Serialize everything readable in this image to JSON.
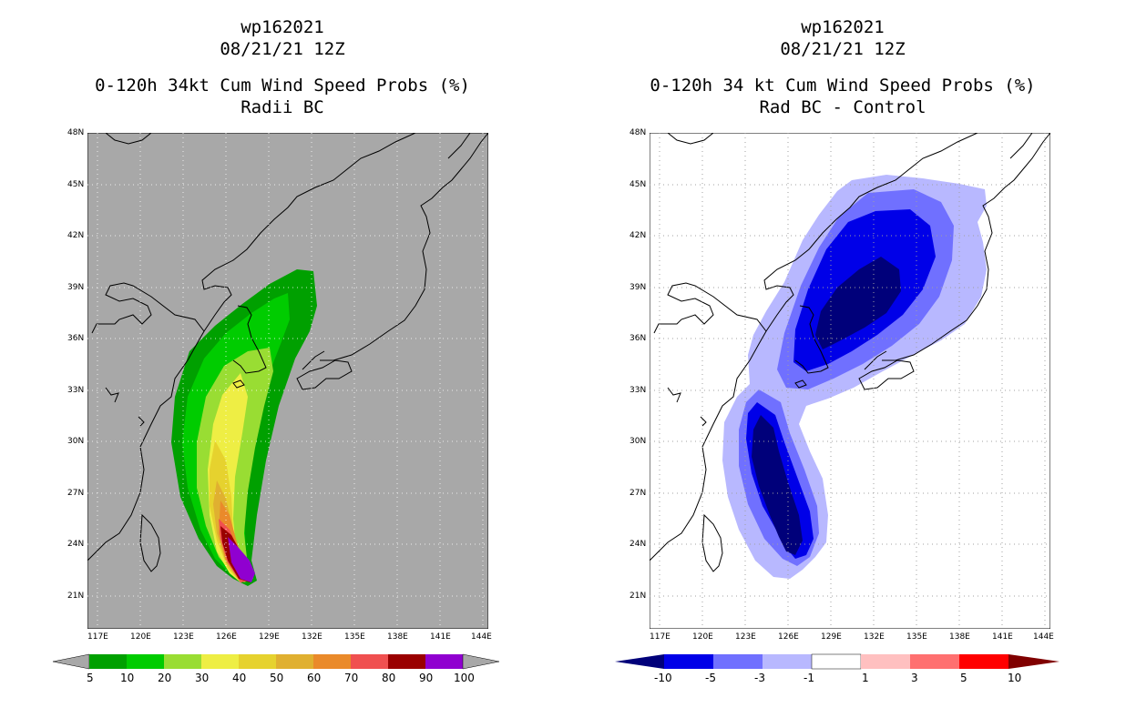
{
  "left": {
    "title_line1": "wp162021",
    "title_line2": "08/21/21 12Z",
    "title_line3": "0-120h 34kt Cum Wind Speed Probs (%)",
    "title_line4": "Radii BC",
    "colorbar": {
      "labels": [
        "5",
        "10",
        "20",
        "30",
        "40",
        "50",
        "60",
        "70",
        "80",
        "90",
        "100"
      ],
      "colors": [
        "#00a000",
        "#00cc00",
        "#99dd33",
        "#eeee44",
        "#e6d22e",
        "#e0b030",
        "#ea8a2a",
        "#f05050",
        "#9a0000",
        "#9000d0"
      ],
      "end_color": "#a8a8a8"
    },
    "background_color": "#a8a8a8"
  },
  "right": {
    "title_line1": "wp162021",
    "title_line2": "08/21/21 12Z",
    "title_line3": "0-120h 34 kt Cum Wind Speed Probs (%)",
    "title_line4": "Rad BC - Control",
    "colorbar": {
      "labels": [
        "-10",
        "-5",
        "-3",
        "-1",
        "1",
        "3",
        "5",
        "10"
      ],
      "colors": [
        "#0000e8",
        "#7070ff",
        "#b8b8ff",
        "#ffffff",
        "#ffc0c0",
        "#ff7070",
        "#ff0000"
      ],
      "low_color": "#00007a",
      "high_color": "#800000"
    }
  },
  "axes": {
    "lat_labels": [
      "48N",
      "45N",
      "42N",
      "39N",
      "36N",
      "33N",
      "30N",
      "27N",
      "24N",
      "21N"
    ],
    "lon_labels": [
      "117E",
      "120E",
      "123E",
      "126E",
      "129E",
      "132E",
      "135E",
      "138E",
      "141E",
      "144E"
    ]
  }
}
